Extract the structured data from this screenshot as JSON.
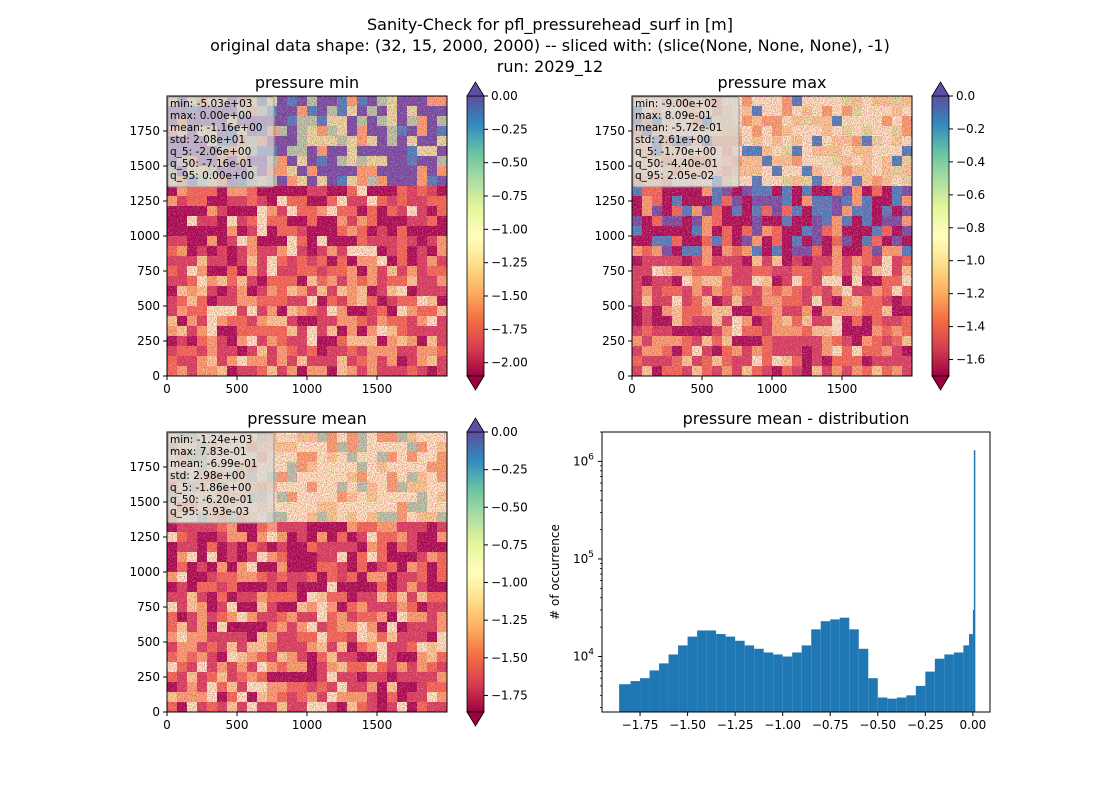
{
  "figure": {
    "title_lines": [
      "Sanity-Check for pfl_pressurehead_surf in [m]",
      "original data shape: (32, 15, 2000, 2000) -- sliced with: (slice(None, None, None), -1)",
      "run: 2029_12"
    ]
  },
  "colors": {
    "spectral": [
      "#9e0142",
      "#d53e4f",
      "#f46d43",
      "#fdae61",
      "#fee08b",
      "#ffffbf",
      "#e6f598",
      "#abdda4",
      "#66c2a5",
      "#3288bd",
      "#5e4fa2"
    ],
    "histogram_bar": "#1f77b4",
    "stats_box_bg": "#d9d9d9",
    "stats_box_border": "#9a9a9a"
  },
  "chart_data": [
    {
      "type": "heatmap",
      "title": "pressure min",
      "colormap": "Spectral",
      "x_ticks": [
        "0",
        "500",
        "1000",
        "1500"
      ],
      "y_ticks": [
        "0",
        "250",
        "500",
        "750",
        "1000",
        "1250",
        "1500",
        "1750"
      ],
      "xlim": [
        0,
        2000
      ],
      "ylim": [
        0,
        2000
      ],
      "colorbar": {
        "vmin": -2.1,
        "vmax": 0.0,
        "ticks": [
          "0.00",
          "−0.25",
          "−0.50",
          "−0.75",
          "−1.00",
          "−1.25",
          "−1.50",
          "−1.75",
          "−2.00"
        ],
        "extend": "both"
      },
      "stats": [
        "min: -5.03e+03",
        "max: 0.00e+00",
        "mean: -1.16e+00",
        "std: 2.08e+01",
        "q_5: -2.06e+00",
        "q_50: -7.16e-01",
        "q_95: 0.00e+00"
      ]
    },
    {
      "type": "heatmap",
      "title": "pressure max",
      "colormap": "Spectral",
      "x_ticks": [
        "0",
        "500",
        "1000",
        "1500"
      ],
      "y_ticks": [
        "0",
        "250",
        "500",
        "750",
        "1000",
        "1250",
        "1500",
        "1750"
      ],
      "xlim": [
        0,
        2000
      ],
      "ylim": [
        0,
        2000
      ],
      "colorbar": {
        "vmin": -1.7,
        "vmax": 0.0,
        "ticks": [
          "0.0",
          "−0.2",
          "−0.4",
          "−0.6",
          "−0.8",
          "−1.0",
          "−1.2",
          "−1.4",
          "−1.6"
        ],
        "extend": "both"
      },
      "stats": [
        "min: -9.00e+02",
        "max: 8.09e-01",
        "mean: -5.72e-01",
        "std: 2.61e+00",
        "q_5: -1.70e+00",
        "q_50: -4.40e-01",
        "q_95: 2.05e-02"
      ]
    },
    {
      "type": "heatmap",
      "title": "pressure mean",
      "colormap": "Spectral",
      "x_ticks": [
        "0",
        "500",
        "1000",
        "1500"
      ],
      "y_ticks": [
        "0",
        "250",
        "500",
        "750",
        "1000",
        "1250",
        "1500",
        "1750"
      ],
      "xlim": [
        0,
        2000
      ],
      "ylim": [
        0,
        2000
      ],
      "colorbar": {
        "vmin": -1.86,
        "vmax": 0.0,
        "ticks": [
          "0.00",
          "−0.25",
          "−0.50",
          "−0.75",
          "−1.00",
          "−1.25",
          "−1.50",
          "−1.75"
        ],
        "extend": "both"
      },
      "stats": [
        "min: -1.24e+03",
        "max: 7.83e-01",
        "mean: -6.99e-01",
        "std: 2.98e+00",
        "q_5: -1.86e+00",
        "q_50: -6.20e-01",
        "q_95: 5.93e-03"
      ]
    },
    {
      "type": "bar",
      "title": "pressure mean - distribution",
      "ylabel": "# of occurrence",
      "xlabel": "",
      "x_ticks": [
        "−1.75",
        "−1.50",
        "−1.25",
        "−1.00",
        "−0.75",
        "−0.50",
        "−0.25",
        "0.00"
      ],
      "y_ticks": [
        "10^4",
        "10^5",
        "10^6"
      ],
      "yscale": "log",
      "xlim": [
        -1.95,
        0.09
      ],
      "ylim": [
        2700,
        2000000
      ],
      "bins": [
        [
          -1.86,
          5200
        ],
        [
          -1.8,
          5600
        ],
        [
          -1.75,
          6000
        ],
        [
          -1.7,
          7200
        ],
        [
          -1.65,
          8500
        ],
        [
          -1.6,
          10500
        ],
        [
          -1.55,
          13000
        ],
        [
          -1.5,
          16000
        ],
        [
          -1.45,
          18500
        ],
        [
          -1.4,
          18500
        ],
        [
          -1.35,
          17000
        ],
        [
          -1.3,
          16000
        ],
        [
          -1.25,
          14500
        ],
        [
          -1.2,
          13000
        ],
        [
          -1.15,
          12000
        ],
        [
          -1.1,
          11000
        ],
        [
          -1.05,
          10500
        ],
        [
          -1.0,
          10000
        ],
        [
          -0.95,
          11000
        ],
        [
          -0.9,
          13000
        ],
        [
          -0.85,
          19000
        ],
        [
          -0.8,
          23000
        ],
        [
          -0.75,
          24000
        ],
        [
          -0.7,
          25000
        ],
        [
          -0.65,
          19000
        ],
        [
          -0.6,
          12000
        ],
        [
          -0.55,
          6000
        ],
        [
          -0.5,
          3800
        ],
        [
          -0.45,
          3700
        ],
        [
          -0.4,
          3800
        ],
        [
          -0.35,
          4000
        ],
        [
          -0.3,
          5000
        ],
        [
          -0.25,
          7000
        ],
        [
          -0.2,
          9500
        ],
        [
          -0.15,
          10500
        ],
        [
          -0.1,
          11000
        ],
        [
          -0.05,
          13000
        ],
        [
          -0.02,
          17000
        ],
        [
          0.0,
          30000
        ],
        [
          0.005,
          1300000
        ]
      ]
    }
  ]
}
